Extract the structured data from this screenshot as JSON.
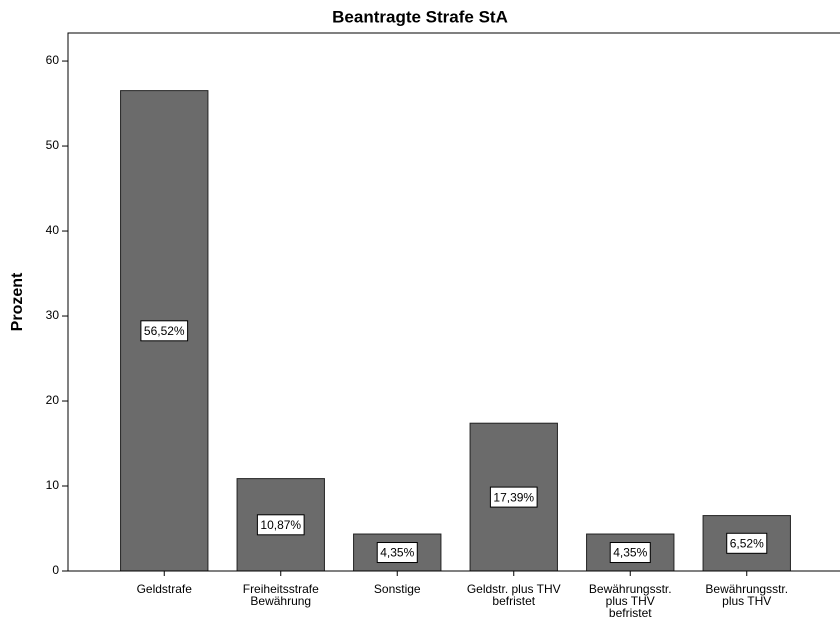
{
  "chart_data": {
    "type": "bar",
    "title": "Beantragte Strafe StA",
    "y_label": "Prozent",
    "categories": [
      "Geldstrafe",
      "Freiheitsstrafe\nBewährung",
      "Sonstige",
      "Geldstr. plus THV\nbefristet",
      "Bewährungsstr.\nplus THV\nbefristet",
      "Bewährungsstr.\nplus THV"
    ],
    "values": [
      56.52,
      10.87,
      4.35,
      17.39,
      4.35,
      6.52
    ],
    "value_labels": [
      "56,52%",
      "10,87%",
      "4,35%",
      "17,39%",
      "4,35%",
      "6,52%"
    ],
    "color": "#6b6b6b",
    "ylim": [
      0,
      63.3
    ],
    "yticks": [
      0,
      10,
      20,
      30,
      40,
      50,
      60
    ],
    "grid": false
  }
}
